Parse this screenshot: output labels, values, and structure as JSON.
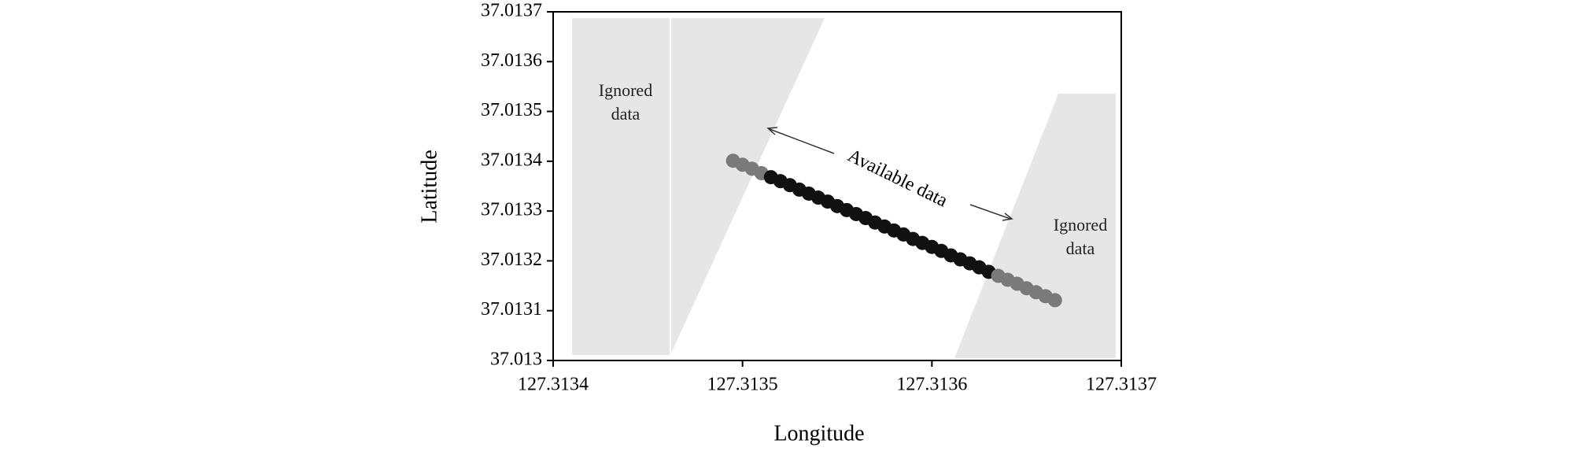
{
  "chart_data": {
    "type": "scatter",
    "x_label": "Longitude",
    "y_label": "Latitude",
    "annotations": [
      "Ignored data",
      "Available data",
      "Ignored data"
    ],
    "xlim": [
      127.3134,
      127.3137
    ],
    "xticks": [
      127.3134,
      127.3135,
      127.3136,
      127.3137
    ],
    "ylim": [
      37.013,
      37.0137
    ],
    "yticks": [
      37.013,
      37.0131,
      37.0132,
      37.0133,
      37.0134,
      37.0135,
      37.0136,
      37.0137
    ],
    "series": [
      {
        "color": "#7a7a7a",
        "x": [
          127.313495,
          127.3135,
          127.313505,
          127.31351
        ],
        "values": [
          37.013401,
          37.013393,
          37.013385,
          37.013376
        ]
      },
      {
        "color": "#111111",
        "x": [
          127.313515,
          127.31352,
          127.313525,
          127.31353,
          127.313535,
          127.31354,
          127.313545,
          127.31355,
          127.313555,
          127.31356,
          127.313565,
          127.31357,
          127.313575,
          127.31358,
          127.313585,
          127.31359,
          127.313595,
          127.3136,
          127.313605,
          127.31361,
          127.313615,
          127.31362,
          127.313625,
          127.31363
        ],
        "values": [
          37.013368,
          37.01336,
          37.013352,
          37.013343,
          37.013335,
          37.013327,
          37.013319,
          37.01331,
          37.013302,
          37.013294,
          37.013286,
          37.013277,
          37.013269,
          37.013261,
          37.013253,
          37.013244,
          37.013236,
          37.013228,
          37.01322,
          37.013211,
          37.013203,
          37.013195,
          37.013187,
          37.013178
        ]
      },
      {
        "color": "#7a7a7a",
        "x": [
          127.313635,
          127.31364,
          127.313645,
          127.31365,
          127.313655,
          127.31366,
          127.313665
        ],
        "values": [
          37.01317,
          37.013162,
          37.013154,
          37.013145,
          37.013137,
          37.013129,
          37.013121
        ]
      }
    ]
  }
}
